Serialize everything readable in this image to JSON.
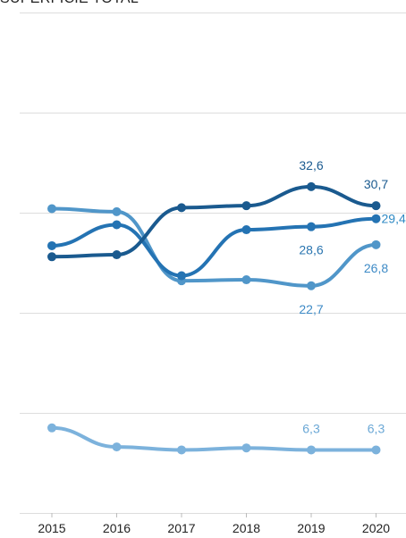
{
  "chart_data": {
    "type": "line",
    "title": "SUPERFICIE TOTAL",
    "categories": [
      "2015",
      "2016",
      "2017",
      "2018",
      "2019",
      "2020"
    ],
    "ylim": [
      0,
      50
    ],
    "grid": true,
    "series": [
      {
        "color": "#1a5a8f",
        "values": [
          25.6,
          25.8,
          30.5,
          30.7,
          32.6,
          30.7
        ],
        "labels": [
          "",
          "",
          "",
          "",
          "32,6",
          "30,7"
        ],
        "label_position": "above",
        "label_color": "#1a5a8f"
      },
      {
        "color": "#2473b3",
        "values": [
          26.7,
          28.8,
          23.7,
          28.3,
          28.6,
          29.4
        ],
        "labels": [
          "",
          "",
          "",
          "",
          "28,6",
          "29,4"
        ],
        "label_position": [
          "above",
          "above",
          "above",
          "above",
          "below",
          "right"
        ],
        "label_color": [
          "#1a5a8f",
          "#1a5a8f",
          "#1a5a8f",
          "#1a5a8f",
          "#2a75b0",
          "#2f8ac4"
        ]
      },
      {
        "color": "#5096c9",
        "values": [
          30.4,
          30.1,
          23.2,
          23.3,
          22.7,
          26.8
        ],
        "labels": [
          "",
          "",
          "",
          "",
          "22,7",
          "26,8"
        ],
        "label_position": "below",
        "label_color": "#3d8ac6"
      },
      {
        "color": "#7cb2dc",
        "values": [
          8.5,
          6.6,
          6.3,
          6.5,
          6.3,
          6.3
        ],
        "labels": [
          "",
          "",
          "",
          "",
          "6,3",
          "6,3"
        ],
        "label_position": "above",
        "label_color": "#6ba8d6"
      }
    ]
  }
}
